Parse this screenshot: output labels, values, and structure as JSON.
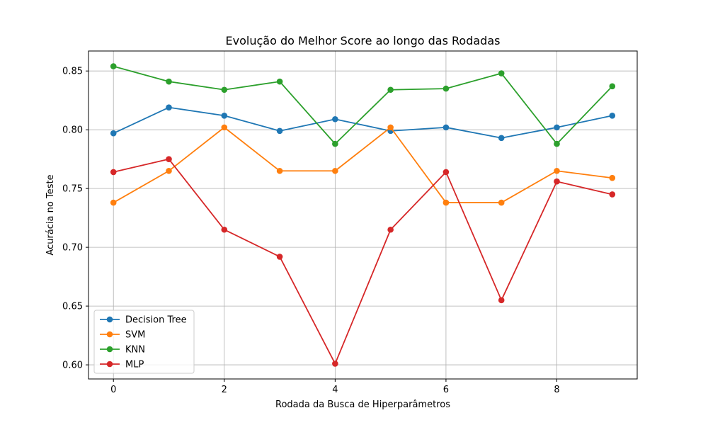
{
  "chart_data": {
    "type": "line",
    "title": "Evolução do Melhor Score ao longo das Rodadas",
    "xlabel": "Rodada da Busca de Hiperparâmetros",
    "ylabel": "Acurácia no Teste",
    "x": [
      0,
      1,
      2,
      3,
      4,
      5,
      6,
      7,
      8,
      9
    ],
    "xlim": [
      -0.45,
      9.45
    ],
    "ylim": [
      0.588,
      0.867
    ],
    "xticks": [
      0,
      2,
      4,
      6,
      8
    ],
    "xtick_labels": [
      "0",
      "2",
      "4",
      "6",
      "8"
    ],
    "yticks": [
      0.6,
      0.65,
      0.7,
      0.75,
      0.8,
      0.85
    ],
    "ytick_labels": [
      "0.60",
      "0.65",
      "0.70",
      "0.75",
      "0.80",
      "0.85"
    ],
    "grid": true,
    "legend_position": "lower-left",
    "series": [
      {
        "name": "Decision Tree",
        "color": "#1f77b4",
        "values": [
          0.797,
          0.819,
          0.812,
          0.799,
          0.809,
          0.799,
          0.802,
          0.793,
          0.802,
          0.812
        ]
      },
      {
        "name": "SVM",
        "color": "#ff7f0e",
        "values": [
          0.738,
          0.765,
          0.802,
          0.765,
          0.765,
          0.802,
          0.738,
          0.738,
          0.765,
          0.759
        ]
      },
      {
        "name": "KNN",
        "color": "#2ca02c",
        "values": [
          0.854,
          0.841,
          0.834,
          0.841,
          0.788,
          0.834,
          0.835,
          0.848,
          0.788,
          0.837
        ]
      },
      {
        "name": "MLP",
        "color": "#d62728",
        "values": [
          0.764,
          0.775,
          0.715,
          0.692,
          0.601,
          0.715,
          0.764,
          0.655,
          0.756,
          0.745
        ]
      }
    ]
  }
}
